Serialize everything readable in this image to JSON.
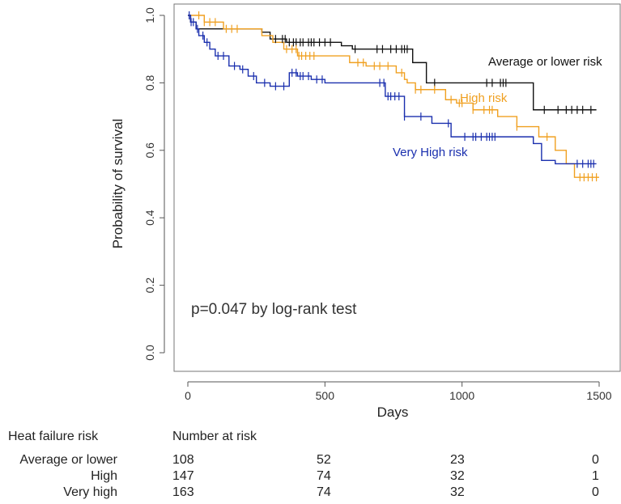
{
  "chart_data": {
    "type": "line",
    "subtype": "kaplan-meier",
    "title": "",
    "xlabel": "Days",
    "ylabel": "Probability of survival",
    "xlim": [
      0,
      1500
    ],
    "ylim": [
      0,
      1
    ],
    "xticks": [
      "0",
      "500",
      "1000",
      "1500"
    ],
    "yticks": [
      "0.0",
      "0.2",
      "0.4",
      "0.6",
      "0.8",
      "1.0"
    ],
    "annotation": "p=0.047 by log-rank test",
    "series": [
      {
        "name": "Average or lower risk",
        "label": "Average or lower risk",
        "color": "#111111",
        "steps": [
          [
            0,
            1.0
          ],
          [
            10,
            0.98
          ],
          [
            30,
            0.96
          ],
          [
            270,
            0.95
          ],
          [
            300,
            0.93
          ],
          [
            360,
            0.92
          ],
          [
            560,
            0.91
          ],
          [
            600,
            0.9
          ],
          [
            820,
            0.86
          ],
          [
            870,
            0.8
          ],
          [
            1260,
            0.72
          ],
          [
            1490,
            0.72
          ]
        ],
        "censor_x": [
          320,
          345,
          355,
          370,
          385,
          395,
          410,
          420,
          440,
          450,
          460,
          480,
          500,
          520,
          610,
          690,
          710,
          740,
          760,
          780,
          790,
          800,
          900,
          1090,
          1110,
          1140,
          1150,
          1160,
          1300,
          1350,
          1380,
          1400,
          1420,
          1440,
          1470
        ]
      },
      {
        "name": "High risk",
        "label": "High risk",
        "color": "#f0a020",
        "steps": [
          [
            0,
            1.0
          ],
          [
            60,
            0.98
          ],
          [
            130,
            0.96
          ],
          [
            270,
            0.94
          ],
          [
            310,
            0.92
          ],
          [
            350,
            0.9
          ],
          [
            400,
            0.88
          ],
          [
            590,
            0.86
          ],
          [
            650,
            0.85
          ],
          [
            760,
            0.83
          ],
          [
            790,
            0.81
          ],
          [
            800,
            0.8
          ],
          [
            830,
            0.78
          ],
          [
            940,
            0.75
          ],
          [
            980,
            0.74
          ],
          [
            1040,
            0.72
          ],
          [
            1130,
            0.7
          ],
          [
            1200,
            0.67
          ],
          [
            1280,
            0.64
          ],
          [
            1340,
            0.6
          ],
          [
            1380,
            0.56
          ],
          [
            1410,
            0.52
          ],
          [
            1500,
            0.52
          ]
        ],
        "censor_x": [
          40,
          60,
          80,
          100,
          140,
          160,
          180,
          360,
          380,
          395,
          405,
          415,
          430,
          445,
          460,
          620,
          640,
          680,
          700,
          730,
          780,
          830,
          850,
          900,
          960,
          990,
          1000,
          1040,
          1080,
          1100,
          1110,
          1200,
          1310,
          1430,
          1445,
          1460,
          1475,
          1490
        ]
      },
      {
        "name": "Very High risk",
        "label": "Very High risk",
        "color": "#1a2fae",
        "steps": [
          [
            0,
            1.0
          ],
          [
            10,
            0.98
          ],
          [
            30,
            0.96
          ],
          [
            40,
            0.94
          ],
          [
            60,
            0.92
          ],
          [
            80,
            0.9
          ],
          [
            100,
            0.88
          ],
          [
            150,
            0.85
          ],
          [
            190,
            0.84
          ],
          [
            220,
            0.82
          ],
          [
            250,
            0.8
          ],
          [
            300,
            0.79
          ],
          [
            370,
            0.83
          ],
          [
            400,
            0.82
          ],
          [
            450,
            0.81
          ],
          [
            500,
            0.8
          ],
          [
            720,
            0.76
          ],
          [
            790,
            0.7
          ],
          [
            890,
            0.68
          ],
          [
            960,
            0.64
          ],
          [
            1180,
            0.64
          ],
          [
            1260,
            0.62
          ],
          [
            1290,
            0.57
          ],
          [
            1340,
            0.56
          ],
          [
            1490,
            0.56
          ]
        ],
        "censor_x": [
          5,
          12,
          20,
          35,
          55,
          70,
          110,
          130,
          170,
          200,
          240,
          280,
          320,
          350,
          380,
          395,
          410,
          420,
          440,
          470,
          490,
          700,
          715,
          730,
          740,
          755,
          770,
          790,
          850,
          950,
          1010,
          1040,
          1050,
          1070,
          1090,
          1100,
          1110,
          1120,
          1420,
          1440,
          1460,
          1470,
          1480
        ]
      }
    ]
  },
  "risk_table": {
    "group_header": "Heat failure risk",
    "number_header": "Number at risk",
    "rows": [
      {
        "label": "Average or lower",
        "counts": [
          "108",
          "52",
          "23",
          "0"
        ]
      },
      {
        "label": "High",
        "counts": [
          "147",
          "74",
          "32",
          "1"
        ]
      },
      {
        "label": "Very high",
        "counts": [
          "163",
          "74",
          "32",
          "0"
        ]
      }
    ]
  }
}
